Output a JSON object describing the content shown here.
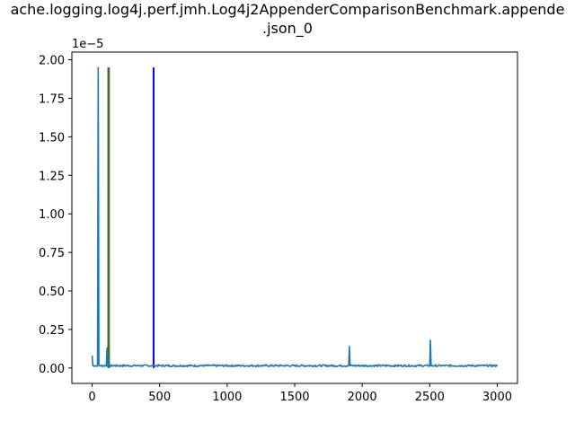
{
  "chart_data": {
    "type": "line",
    "title_lines": [
      "ache.logging.log4j.perf.jmh.Log4j2AppenderComparisonBenchmark.appende",
      ".json_0"
    ],
    "xlabel": "",
    "ylabel": "",
    "y_offset_label": "1e−5",
    "xlim": [
      -150,
      3150
    ],
    "ylim": [
      -1e-06,
      2.05e-05
    ],
    "x_ticks": [
      0,
      500,
      1000,
      1500,
      2000,
      2500,
      3000
    ],
    "x_tick_labels": [
      "0",
      "500",
      "1000",
      "1500",
      "2000",
      "2500",
      "3000"
    ],
    "y_ticks": [
      0,
      2.5e-06,
      5e-06,
      7.5e-06,
      1e-05,
      1.25e-05,
      1.5e-05,
      1.75e-05,
      2e-05
    ],
    "y_tick_labels": [
      "0.00",
      "0.25",
      "0.50",
      "0.75",
      "1.00",
      "1.25",
      "1.50",
      "1.75",
      "2.00"
    ],
    "grid": false,
    "series": [
      {
        "color": "#1f77b4",
        "baseline": 1.5e-07,
        "x_end": 3000,
        "spikes": [
          {
            "x": 0,
            "y": 8e-07
          },
          {
            "x": 45,
            "y": 1.95e-05
          },
          {
            "x": 110,
            "y": 1.3e-06
          },
          {
            "x": 1905,
            "y": 1.4e-06
          },
          {
            "x": 2505,
            "y": 1.8e-06
          }
        ]
      }
    ],
    "vertical_lines": [
      {
        "x": 120,
        "y0": 0.0,
        "y1": 1.95e-05,
        "color": "#7f3f00"
      },
      {
        "x": 125,
        "y0": 0.0,
        "y1": 1.95e-05,
        "color": "#2e7d32"
      },
      {
        "x": 455,
        "y0": 0.0,
        "y1": 1.95e-05,
        "color": "#0000ff"
      }
    ]
  }
}
